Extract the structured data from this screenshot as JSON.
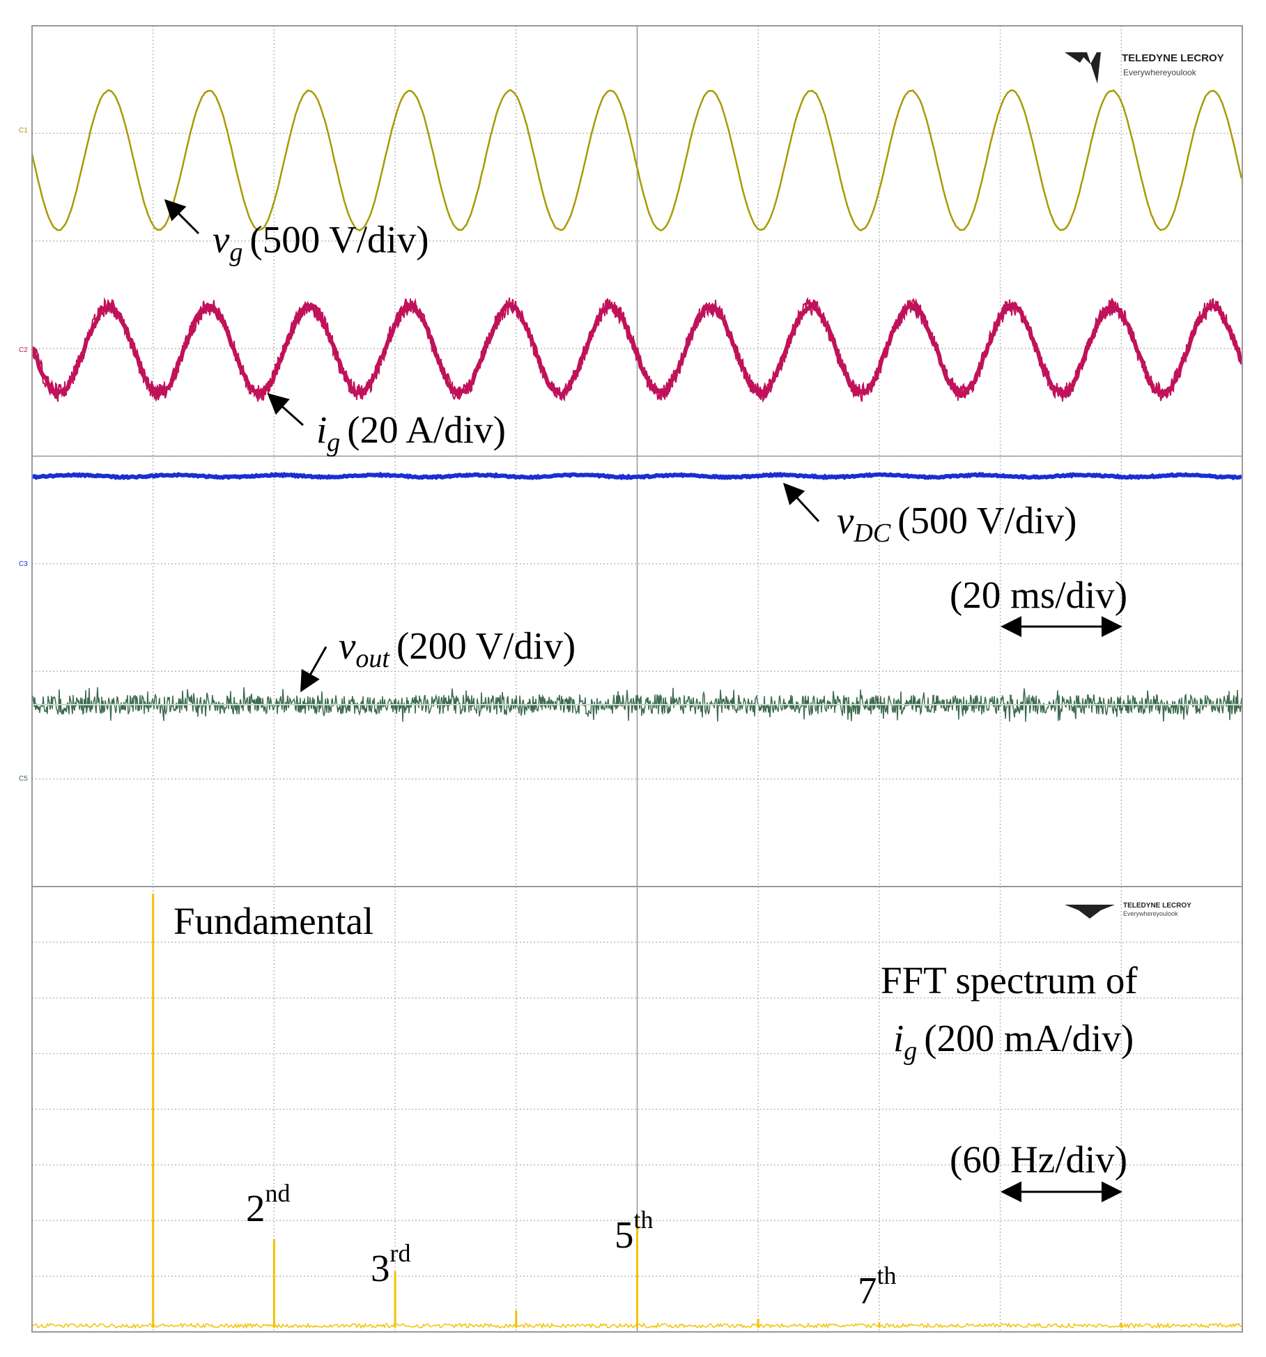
{
  "scope": {
    "logo": {
      "brand": "TELEDYNE LECROY",
      "tagline": "Everywhereyoulook"
    },
    "channels": [
      "C1",
      "C2",
      "C3",
      "C5"
    ],
    "traces": [
      {
        "symbol": "v",
        "subscript": "g",
        "scale": "(500 V/div)"
      },
      {
        "symbol": "i",
        "subscript": "g",
        "scale": "(20 A/div)"
      },
      {
        "symbol": "v",
        "subscript": "DC",
        "scale": "(500 V/div)"
      },
      {
        "symbol": "v",
        "subscript": "out",
        "scale": "(200 V/div)"
      }
    ],
    "time_scale": "(20 ms/div)"
  },
  "fft": {
    "logo": {
      "brand": "TELEDYNE LECROY",
      "tagline": "Everywhereyoulook"
    },
    "fundamental": "Fundamental",
    "title": "FFT spectrum of",
    "trace": {
      "symbol": "i",
      "subscript": "g",
      "scale": "(200 mA/div)"
    },
    "freq_scale": "(60 Hz/div)",
    "harmonics": [
      {
        "number": "2",
        "suffix": "nd"
      },
      {
        "number": "3",
        "suffix": "rd"
      },
      {
        "number": "5",
        "suffix": "th"
      },
      {
        "number": "7",
        "suffix": "th"
      }
    ]
  }
}
